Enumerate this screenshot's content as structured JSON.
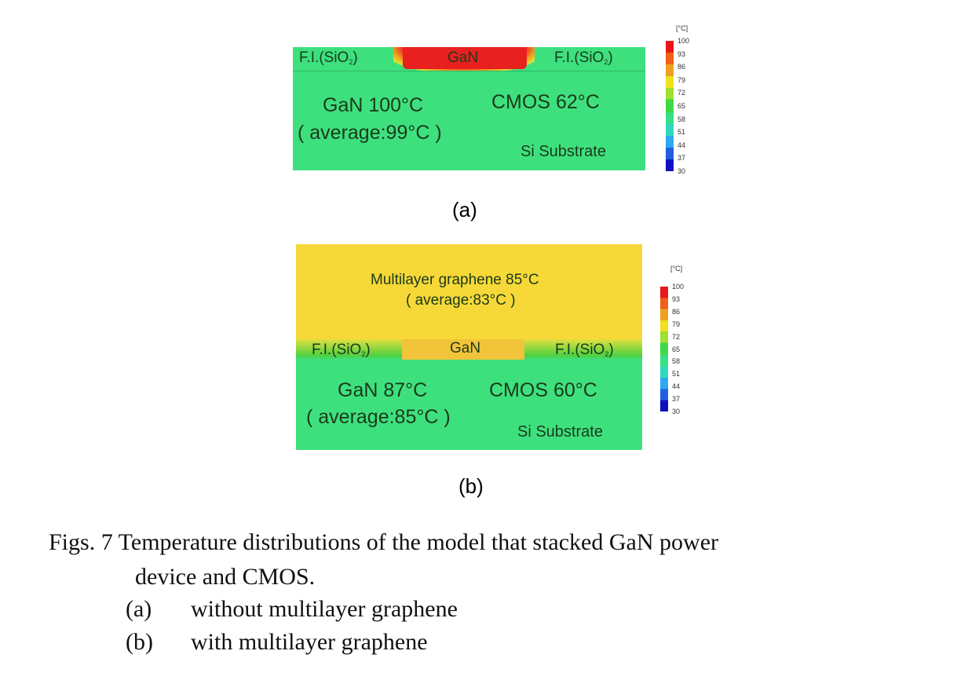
{
  "panel_a": {
    "label": "(a)",
    "layer_labels": {
      "fi_left": "F.I.(SiO",
      "fi_right": "F.I.(SiO",
      "sub": "2",
      ")": ")",
      "gan": "GaN"
    },
    "gan_temp": "GaN 100°C",
    "gan_avg": "( average:99°C )",
    "cmos_temp": "CMOS 62°C",
    "substrate": "Si Substrate"
  },
  "panel_b": {
    "label": "(b)",
    "graphene_temp": "Multilayer graphene 85°C",
    "graphene_avg": "( average:83°C )",
    "layer_labels": {
      "fi_left": "F.I.(SiO",
      "fi_right": "F.I.(SiO",
      "sub": "2",
      "gan": "GaN"
    },
    "gan_temp": "GaN 87°C",
    "gan_avg": "( average:85°C )",
    "cmos_temp": "CMOS 60°C",
    "substrate": "Si Substrate"
  },
  "colorbar": {
    "unit": "[°C]",
    "ticks": [
      "100",
      "93",
      "86",
      "79",
      "72",
      "65",
      "58",
      "51",
      "44",
      "37",
      "30"
    ],
    "colors": {
      "min": "#1010c0",
      "mid": "#38e088",
      "max": "#e81818"
    }
  },
  "caption": {
    "line1": "Figs. 7 Temperature distributions of the model that stacked GaN power",
    "line2": "device and CMOS.",
    "items": [
      {
        "tag": "(a)",
        "text": "without multilayer graphene"
      },
      {
        "tag": "(b)",
        "text": "with multilayer graphene"
      }
    ]
  }
}
